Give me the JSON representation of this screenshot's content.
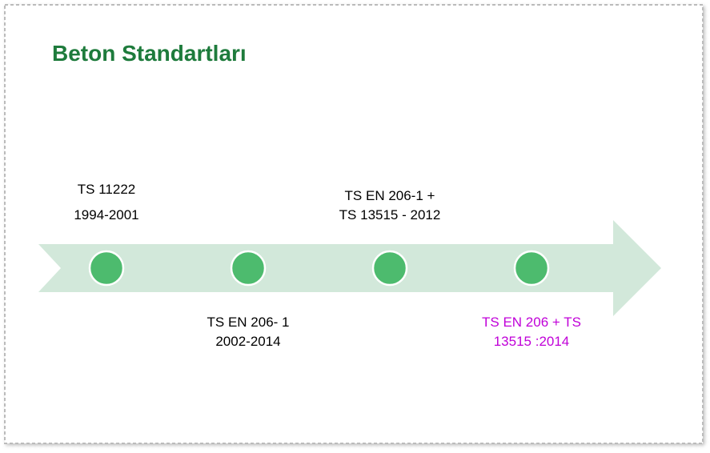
{
  "title": "Beton Standartları",
  "milestones": [
    {
      "lines": [
        "TS 11222",
        "1994-2001"
      ]
    },
    {
      "lines": [
        "TS EN 206- 1",
        "2002-2014"
      ]
    },
    {
      "lines": [
        "TS EN 206-1 +",
        "TS 13515 - 2012"
      ]
    },
    {
      "lines": [
        "TS EN 206 + TS",
        "13515 :2014"
      ]
    }
  ]
}
